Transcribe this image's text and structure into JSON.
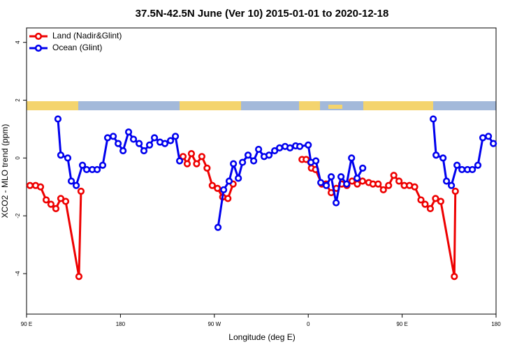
{
  "chart_data": {
    "type": "line",
    "title": "37.5N-42.5N June (Ver 10)   2015-01-01 to 2020-12-18",
    "xlabel": "Longitude (deg E)",
    "ylabel": "XCO2 - MLO trend (ppm)",
    "xlim": [
      90,
      540
    ],
    "xticks": [
      {
        "value": 90,
        "label": "90 E"
      },
      {
        "value": 180,
        "label": "180"
      },
      {
        "value": 270,
        "label": "90 W"
      },
      {
        "value": 360,
        "label": "0"
      },
      {
        "value": 450,
        "label": "90 E"
      },
      {
        "value": 540,
        "label": "180"
      }
    ],
    "ylim": [
      -5.4,
      4.5
    ],
    "yticks": [
      -4,
      -2,
      0,
      2,
      4
    ],
    "legend": "top-left",
    "series": [
      {
        "name": "Land (Nadir&Glint)",
        "color": "#ee0000",
        "x": [
          93.3,
          98.7,
          103.4,
          108.8,
          113.4,
          118.1,
          122.8,
          127.5,
          140.2,
          142.2,
          null,
          240,
          244,
          248,
          253,
          258,
          263,
          268,
          273,
          278,
          283,
          288,
          null,
          354,
          358,
          363,
          367,
          373,
          377,
          382,
          387,
          392,
          397,
          402,
          407,
          412,
          418,
          422,
          427,
          432,
          437,
          442,
          447,
          452,
          457,
          462,
          468,
          472,
          477,
          482,
          487,
          500,
          501
        ],
        "values": [
          -0.95,
          -0.95,
          -1.0,
          -1.45,
          -1.6,
          -1.75,
          -1.4,
          -1.5,
          -4.1,
          -1.15,
          null,
          0.05,
          -0.2,
          0.15,
          -0.2,
          0.05,
          -0.35,
          -0.95,
          -1.05,
          -1.35,
          -1.4,
          -0.9,
          null,
          -0.05,
          -0.05,
          -0.35,
          -0.4,
          -0.9,
          -0.9,
          -1.2,
          -1.05,
          -0.9,
          -0.95,
          -0.8,
          -0.9,
          -0.8,
          -0.85,
          -0.9,
          -0.9,
          -1.1,
          -0.95,
          -0.6,
          -0.8,
          -0.95,
          -0.95,
          -1.0,
          -1.45,
          -1.6,
          -1.75,
          -1.4,
          -1.5,
          -4.1,
          -1.15
        ]
      },
      {
        "name": "Ocean (Glint)",
        "color": "#0000ee",
        "x": [
          120.1,
          122.8,
          129.5,
          132.9,
          137.6,
          143.6,
          147.6,
          153.0,
          157.7,
          163.0,
          167.7,
          173.1,
          177.8,
          182.5,
          187.8,
          192.5,
          197.9,
          202.5,
          207.9,
          212.6,
          217.9,
          222.6,
          228.0,
          232.7,
          236.7,
          null,
          273.5,
          278.9,
          284.2,
          288.3,
          293.0,
          297.0,
          302.3,
          307.7,
          312.4,
          317.7,
          322.4,
          327.8,
          332.5,
          337.8,
          342.5,
          347.9,
          351.9,
          360,
          362.6,
          367.3,
          372.0,
          377.3,
          382.0,
          386.7,
          391.4,
          396.8,
          401.5,
          406.8,
          412.2,
          null,
          479.8,
          482.5,
          489.2,
          492.5,
          497.2,
          502.6,
          507.3,
          512.6,
          517.3,
          522.6,
          527.3,
          532.7,
          537.4
        ],
        "values": [
          1.35,
          0.1,
          0.0,
          -0.8,
          -0.95,
          -0.25,
          -0.4,
          -0.4,
          -0.4,
          -0.25,
          0.7,
          0.75,
          0.5,
          0.25,
          0.9,
          0.65,
          0.5,
          0.25,
          0.45,
          0.7,
          0.55,
          0.5,
          0.6,
          0.75,
          -0.1,
          null,
          -2.4,
          -1.1,
          -0.8,
          -0.2,
          -0.7,
          -0.15,
          0.1,
          -0.1,
          0.3,
          0.05,
          0.1,
          0.25,
          0.35,
          0.4,
          0.35,
          0.42,
          0.4,
          0.45,
          -0.15,
          -0.1,
          -0.85,
          -0.95,
          -0.65,
          -1.55,
          -0.65,
          -0.9,
          0.0,
          -0.7,
          -0.35,
          null,
          1.35,
          0.1,
          0.0,
          -0.8,
          -0.95,
          -0.25,
          -0.4,
          -0.4,
          -0.4,
          -0.25,
          0.7,
          0.75,
          0.5
        ]
      }
    ]
  }
}
